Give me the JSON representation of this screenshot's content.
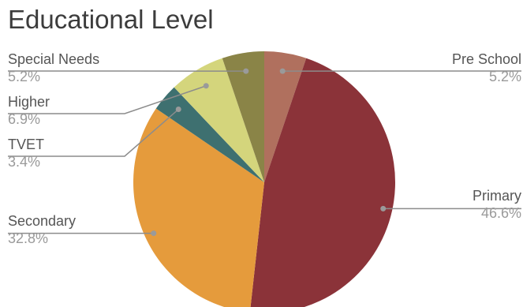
{
  "chart_data": {
    "type": "pie",
    "title": "Educational Level",
    "start_angle_deg": 0,
    "direction": "clockwise",
    "slices": [
      {
        "label": "Pre School",
        "value": 5.2,
        "display": "5.2%",
        "color": "#b0705e"
      },
      {
        "label": "Primary",
        "value": 46.6,
        "display": "46.6%",
        "color": "#8b3339"
      },
      {
        "label": "Secondary",
        "value": 32.8,
        "display": "32.8%",
        "color": "#e59b3c"
      },
      {
        "label": "TVET",
        "value": 3.4,
        "display": "3.4%",
        "color": "#3e7070"
      },
      {
        "label": "Higher",
        "value": 6.9,
        "display": "6.9%",
        "color": "#d4d57c"
      },
      {
        "label": "Special Needs",
        "value": 5.2,
        "display": "5.2%",
        "color": "#8a8447"
      }
    ]
  }
}
